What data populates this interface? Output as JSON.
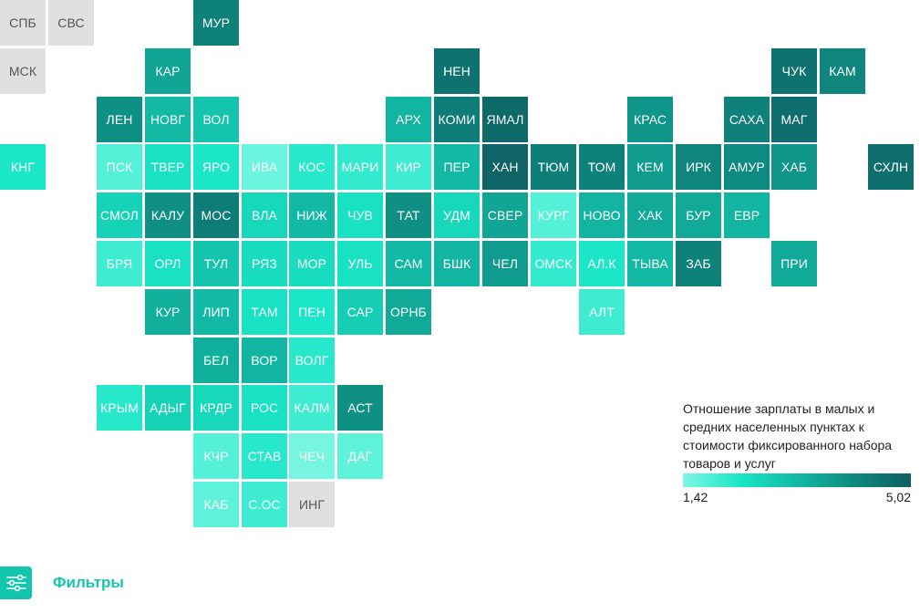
{
  "legend": {
    "title": "Отношение зарплаты в малых и средних населенных пунктах к стоимости фиксированного набора товаров и услуг",
    "min_label": "1,42",
    "max_label": "5,02",
    "min": 1.42,
    "max": 5.02,
    "color_low": "#7ff7e4",
    "color_high": "#0e5e62",
    "nodata_color": "#e0e0e0"
  },
  "filters": {
    "label": "Фильтры",
    "icon": "sliders-icon"
  },
  "regions": [
    {
      "label": "СПБ",
      "col": 0,
      "row": 0,
      "value": null
    },
    {
      "label": "СВС",
      "col": 1,
      "row": 0,
      "value": null
    },
    {
      "label": "МУР",
      "col": 4,
      "row": 0,
      "value": 4.3
    },
    {
      "label": "МСК",
      "col": 0,
      "row": 1,
      "value": null
    },
    {
      "label": "КАР",
      "col": 3,
      "row": 1,
      "value": 3.6
    },
    {
      "label": "НЕН",
      "col": 9,
      "row": 1,
      "value": 4.6
    },
    {
      "label": "ЧУК",
      "col": 16,
      "row": 1,
      "value": 4.6
    },
    {
      "label": "КАМ",
      "col": 17,
      "row": 1,
      "value": 4.2
    },
    {
      "label": "ЛЕН",
      "col": 2,
      "row": 2,
      "value": 4.0
    },
    {
      "label": "НОВГ",
      "col": 3,
      "row": 2,
      "value": 3.2
    },
    {
      "label": "ВОЛ",
      "col": 4,
      "row": 2,
      "value": 3.0
    },
    {
      "label": "АРХ",
      "col": 8,
      "row": 2,
      "value": 3.3
    },
    {
      "label": "КОМИ",
      "col": 9,
      "row": 2,
      "value": 4.4
    },
    {
      "label": "ЯМАЛ",
      "col": 10,
      "row": 2,
      "value": 4.8
    },
    {
      "label": "КРАС",
      "col": 13,
      "row": 2,
      "value": 3.9
    },
    {
      "label": "САХА",
      "col": 15,
      "row": 2,
      "value": 4.3
    },
    {
      "label": "МАГ",
      "col": 16,
      "row": 2,
      "value": 4.7
    },
    {
      "label": "КНГ",
      "col": 0,
      "row": 3,
      "value": 2.3
    },
    {
      "label": "ПСК",
      "col": 2,
      "row": 3,
      "value": 1.8
    },
    {
      "label": "ТВЕР",
      "col": 3,
      "row": 3,
      "value": 2.4
    },
    {
      "label": "ЯРО",
      "col": 4,
      "row": 3,
      "value": 2.3
    },
    {
      "label": "ИВА",
      "col": 5,
      "row": 3,
      "value": 1.6
    },
    {
      "label": "КОС",
      "col": 6,
      "row": 3,
      "value": 2.2
    },
    {
      "label": "МАРИ",
      "col": 7,
      "row": 3,
      "value": 2.1
    },
    {
      "label": "КИР",
      "col": 8,
      "row": 3,
      "value": 2.0
    },
    {
      "label": "ПЕР",
      "col": 9,
      "row": 3,
      "value": 3.2
    },
    {
      "label": "ХАН",
      "col": 10,
      "row": 3,
      "value": 4.9
    },
    {
      "label": "ТЮМ",
      "col": 11,
      "row": 3,
      "value": 4.4
    },
    {
      "label": "ТОМ",
      "col": 12,
      "row": 3,
      "value": 4.3
    },
    {
      "label": "КЕМ",
      "col": 13,
      "row": 3,
      "value": 3.8
    },
    {
      "label": "ИРК",
      "col": 14,
      "row": 3,
      "value": 4.2
    },
    {
      "label": "АМУР",
      "col": 15,
      "row": 3,
      "value": 4.1
    },
    {
      "label": "ХАБ",
      "col": 16,
      "row": 3,
      "value": 3.9
    },
    {
      "label": "СХЛН",
      "col": 18,
      "row": 3,
      "value": 4.7
    },
    {
      "label": "СМОЛ",
      "col": 2,
      "row": 4,
      "value": 2.7
    },
    {
      "label": "КАЛУ",
      "col": 3,
      "row": 4,
      "value": 4.0
    },
    {
      "label": "МОС",
      "col": 4,
      "row": 4,
      "value": 4.4
    },
    {
      "label": "ВЛА",
      "col": 5,
      "row": 4,
      "value": 2.6
    },
    {
      "label": "НИЖ",
      "col": 6,
      "row": 4,
      "value": 3.2
    },
    {
      "label": "ЧУВ",
      "col": 7,
      "row": 4,
      "value": 2.4
    },
    {
      "label": "ТАТ",
      "col": 8,
      "row": 4,
      "value": 4.0
    },
    {
      "label": "УДМ",
      "col": 9,
      "row": 4,
      "value": 2.6
    },
    {
      "label": "СВЕР",
      "col": 10,
      "row": 4,
      "value": 3.6
    },
    {
      "label": "КУРГ",
      "col": 11,
      "row": 4,
      "value": 1.8
    },
    {
      "label": "НОВО",
      "col": 12,
      "row": 4,
      "value": 3.3
    },
    {
      "label": "ХАК",
      "col": 13,
      "row": 4,
      "value": 3.5
    },
    {
      "label": "БУР",
      "col": 14,
      "row": 4,
      "value": 3.5
    },
    {
      "label": "ЕВР",
      "col": 15,
      "row": 4,
      "value": 3.3
    },
    {
      "label": "БРЯ",
      "col": 2,
      "row": 5,
      "value": 2.0
    },
    {
      "label": "ОРЛ",
      "col": 3,
      "row": 5,
      "value": 2.4
    },
    {
      "label": "ТУЛ",
      "col": 4,
      "row": 5,
      "value": 3.0
    },
    {
      "label": "РЯЗ",
      "col": 5,
      "row": 5,
      "value": 2.5
    },
    {
      "label": "МОР",
      "col": 6,
      "row": 5,
      "value": 2.5
    },
    {
      "label": "УЛЬ",
      "col": 7,
      "row": 5,
      "value": 2.4
    },
    {
      "label": "САМ",
      "col": 8,
      "row": 5,
      "value": 3.2
    },
    {
      "label": "БШК",
      "col": 9,
      "row": 5,
      "value": 3.3
    },
    {
      "label": "ЧЕЛ",
      "col": 10,
      "row": 5,
      "value": 3.8
    },
    {
      "label": "ОМСК",
      "col": 11,
      "row": 5,
      "value": 2.1
    },
    {
      "label": "АЛ.К",
      "col": 12,
      "row": 5,
      "value": 2.3
    },
    {
      "label": "ТЫВА",
      "col": 13,
      "row": 5,
      "value": 3.2
    },
    {
      "label": "ЗАБ",
      "col": 14,
      "row": 5,
      "value": 4.3
    },
    {
      "label": "ПРИ",
      "col": 16,
      "row": 5,
      "value": 3.5
    },
    {
      "label": "КУР",
      "col": 3,
      "row": 6,
      "value": 3.4
    },
    {
      "label": "ЛИП",
      "col": 4,
      "row": 6,
      "value": 3.2
    },
    {
      "label": "ТАМ",
      "col": 5,
      "row": 6,
      "value": 2.4
    },
    {
      "label": "ПЕН",
      "col": 6,
      "row": 6,
      "value": 2.3
    },
    {
      "label": "САР",
      "col": 7,
      "row": 6,
      "value": 2.8
    },
    {
      "label": "ОРНБ",
      "col": 8,
      "row": 6,
      "value": 3.5
    },
    {
      "label": "АЛТ",
      "col": 12,
      "row": 6,
      "value": 2.0
    },
    {
      "label": "БЕЛ",
      "col": 4,
      "row": 7,
      "value": 3.4
    },
    {
      "label": "ВОР",
      "col": 5,
      "row": 7,
      "value": 3.3
    },
    {
      "label": "ВОЛГ",
      "col": 6,
      "row": 7,
      "value": 2.2
    },
    {
      "label": "КРЫМ",
      "col": 2,
      "row": 8,
      "value": 2.2
    },
    {
      "label": "АДЫГ",
      "col": 3,
      "row": 8,
      "value": 2.7
    },
    {
      "label": "КРДР",
      "col": 4,
      "row": 8,
      "value": 2.6
    },
    {
      "label": "РОС",
      "col": 5,
      "row": 8,
      "value": 2.4
    },
    {
      "label": "КАЛМ",
      "col": 6,
      "row": 8,
      "value": 2.0
    },
    {
      "label": "АСТ",
      "col": 7,
      "row": 8,
      "value": 4.0
    },
    {
      "label": "КЧР",
      "col": 4,
      "row": 9,
      "value": 1.8
    },
    {
      "label": "СТАВ",
      "col": 5,
      "row": 9,
      "value": 2.2
    },
    {
      "label": "ЧЕЧ",
      "col": 6,
      "row": 9,
      "value": 1.5
    },
    {
      "label": "ДАГ",
      "col": 7,
      "row": 9,
      "value": 1.7
    },
    {
      "label": "КАБ",
      "col": 4,
      "row": 10,
      "value": 1.7
    },
    {
      "label": "С.ОС",
      "col": 5,
      "row": 10,
      "value": 2.0
    },
    {
      "label": "ИНГ",
      "col": 6,
      "row": 10,
      "value": null
    }
  ]
}
